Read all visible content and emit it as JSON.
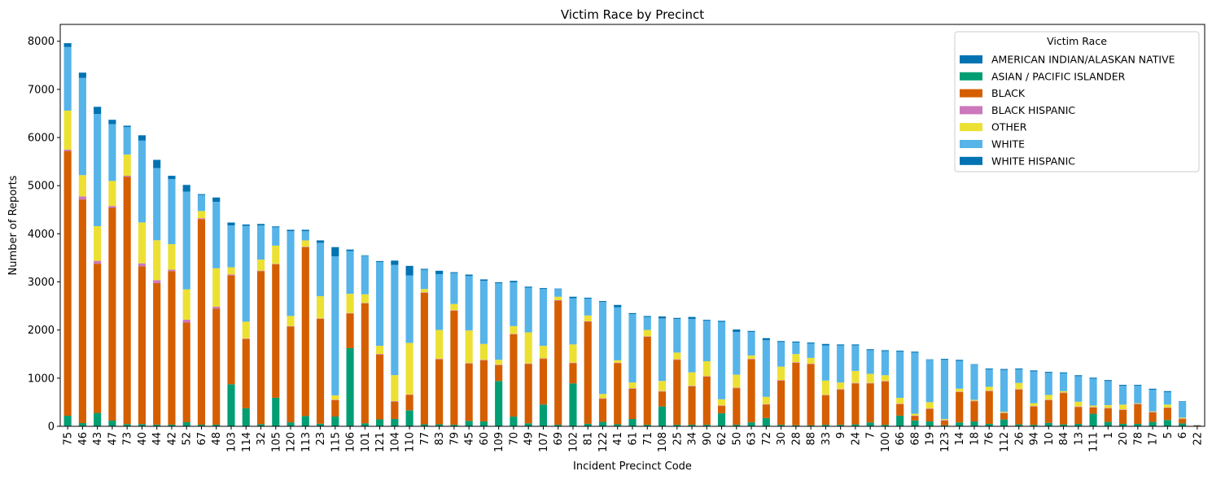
{
  "chart_data": {
    "type": "bar",
    "stacked": true,
    "title": "Victim Race by Precinct",
    "xlabel": "Incident Precinct Code",
    "ylabel": "Number of Reports",
    "ylim": [
      0,
      8350
    ],
    "yticks": [
      0,
      1000,
      2000,
      3000,
      4000,
      5000,
      6000,
      7000,
      8000
    ],
    "legend_title": "Victim Race",
    "legend_position": "top-right",
    "categories": [
      "75",
      "46",
      "43",
      "47",
      "73",
      "40",
      "44",
      "42",
      "52",
      "67",
      "48",
      "103",
      "114",
      "32",
      "105",
      "120",
      "113",
      "23",
      "115",
      "106",
      "101",
      "121",
      "104",
      "110",
      "77",
      "83",
      "79",
      "45",
      "60",
      "109",
      "70",
      "49",
      "107",
      "69",
      "102",
      "81",
      "122",
      "41",
      "61",
      "71",
      "108",
      "25",
      "34",
      "90",
      "62",
      "50",
      "63",
      "72",
      "30",
      "28",
      "88",
      "33",
      "9",
      "24",
      "7",
      "100",
      "66",
      "68",
      "19",
      "123",
      "14",
      "18",
      "76",
      "112",
      "26",
      "94",
      "10",
      "84",
      "13",
      "111",
      "1",
      "20",
      "78",
      "17",
      "5",
      "6",
      "22"
    ],
    "series": [
      {
        "name": "AMERICAN INDIAN/ALASKAN NATIVE",
        "color": "#0173b2",
        "values": [
          10,
          8,
          8,
          8,
          6,
          6,
          6,
          5,
          5,
          4,
          4,
          4,
          4,
          4,
          4,
          3,
          3,
          3,
          3,
          3,
          3,
          3,
          3,
          3,
          2,
          2,
          2,
          2,
          2,
          2,
          2,
          2,
          2,
          2,
          2,
          2,
          2,
          2,
          2,
          2,
          2,
          2,
          2,
          2,
          2,
          2,
          2,
          2,
          1,
          1,
          1,
          1,
          1,
          1,
          1,
          1,
          1,
          1,
          1,
          1,
          1,
          1,
          1,
          1,
          1,
          1,
          1,
          1,
          1,
          1,
          1,
          1,
          1,
          1,
          1,
          1,
          0
        ]
      },
      {
        "name": "ASIAN / PACIFIC ISLANDER",
        "color": "#029e73",
        "values": [
          210,
          60,
          270,
          110,
          40,
          40,
          30,
          30,
          80,
          30,
          30,
          870,
          370,
          40,
          590,
          80,
          210,
          50,
          200,
          1620,
          60,
          140,
          150,
          330,
          40,
          40,
          30,
          110,
          100,
          940,
          200,
          60,
          450,
          30,
          890,
          50,
          90,
          40,
          150,
          30,
          410,
          30,
          30,
          30,
          270,
          30,
          80,
          170,
          30,
          20,
          20,
          30,
          30,
          40,
          80,
          30,
          220,
          120,
          100,
          20,
          80,
          100,
          50,
          140,
          40,
          30,
          70,
          40,
          50,
          260,
          90,
          50,
          50,
          90,
          130,
          60,
          5
        ]
      },
      {
        "name": "BLACK",
        "color": "#d55e00",
        "values": [
          5500,
          4640,
          3100,
          4420,
          5140,
          3280,
          2940,
          3190,
          2070,
          4270,
          2410,
          2260,
          1440,
          3180,
          2770,
          1990,
          3510,
          2180,
          340,
          720,
          2490,
          1350,
          360,
          320,
          2730,
          1350,
          2370,
          1190,
          1270,
          330,
          1710,
          1230,
          950,
          2580,
          420,
          2120,
          480,
          1270,
          630,
          1830,
          310,
          1350,
          800,
          1000,
          150,
          760,
          1310,
          280,
          920,
          1300,
          1270,
          610,
          730,
          850,
          810,
          900,
          240,
          90,
          260,
          100,
          630,
          420,
          680,
          130,
          720,
          380,
          470,
          650,
          350,
          130,
          280,
          290,
          410,
          200,
          250,
          90,
          15
        ]
      },
      {
        "name": "BLACK HISPANIC",
        "color": "#cc78bc",
        "values": [
          30,
          70,
          60,
          40,
          20,
          60,
          60,
          30,
          60,
          20,
          40,
          20,
          10,
          10,
          10,
          10,
          10,
          10,
          10,
          10,
          10,
          10,
          10,
          10,
          10,
          10,
          10,
          10,
          10,
          10,
          10,
          10,
          10,
          10,
          10,
          10,
          10,
          10,
          10,
          10,
          10,
          10,
          10,
          10,
          10,
          10,
          10,
          10,
          10,
          10,
          10,
          10,
          10,
          10,
          10,
          10,
          10,
          10,
          10,
          10,
          10,
          10,
          10,
          10,
          10,
          10,
          10,
          10,
          10,
          10,
          10,
          10,
          10,
          10,
          10,
          10,
          0
        ]
      },
      {
        "name": "OTHER",
        "color": "#ece133",
        "values": [
          810,
          440,
          720,
          520,
          440,
          850,
          830,
          530,
          630,
          150,
          800,
          150,
          350,
          230,
          380,
          210,
          130,
          460,
          90,
          400,
          180,
          170,
          540,
          1070,
          70,
          600,
          130,
          680,
          330,
          100,
          160,
          650,
          260,
          70,
          380,
          120,
          90,
          50,
          120,
          130,
          210,
          140,
          280,
          310,
          130,
          270,
          70,
          150,
          280,
          170,
          120,
          300,
          140,
          250,
          190,
          120,
          120,
          40,
          130,
          20,
          60,
          20,
          80,
          20,
          130,
          60,
          100,
          30,
          100,
          30,
          60,
          100,
          10,
          10,
          60,
          20,
          0
        ]
      },
      {
        "name": "WHITE",
        "color": "#56b4e9",
        "values": [
          1320,
          2020,
          2330,
          1180,
          570,
          1700,
          1500,
          1350,
          2030,
          330,
          1380,
          870,
          1990,
          710,
          380,
          1760,
          190,
          1110,
          2890,
          890,
          800,
          1740,
          2290,
          1400,
          400,
          1160,
          640,
          1130,
          1310,
          1590,
          910,
          930,
          1180,
          160,
          960,
          350,
          1910,
          1100,
          1420,
          270,
          1300,
          700,
          1110,
          840,
          1610,
          890,
          490,
          1180,
          510,
          240,
          300,
          730,
          770,
          530,
          490,
          500,
          960,
          1270,
          880,
          1230,
          580,
          730,
          360,
          870,
          280,
          660,
          460,
          370,
          530,
          560,
          500,
          390,
          360,
          450,
          260,
          330,
          5
        ]
      },
      {
        "name": "WHITE HISPANIC",
        "color": "#0173b2",
        "values": [
          80,
          110,
          150,
          90,
          30,
          110,
          170,
          70,
          140,
          20,
          90,
          60,
          30,
          30,
          20,
          30,
          30,
          50,
          190,
          30,
          10,
          20,
          90,
          200,
          20,
          70,
          20,
          30,
          30,
          20,
          30,
          20,
          20,
          10,
          30,
          20,
          20,
          50,
          20,
          20,
          40,
          20,
          40,
          20,
          20,
          50,
          20,
          40,
          20,
          20,
          20,
          30,
          20,
          20,
          20,
          20,
          20,
          20,
          10,
          20,
          20,
          10,
          20,
          20,
          20,
          20,
          20,
          20,
          20,
          20,
          20,
          20,
          20,
          20,
          20,
          10,
          2
        ]
      }
    ]
  }
}
